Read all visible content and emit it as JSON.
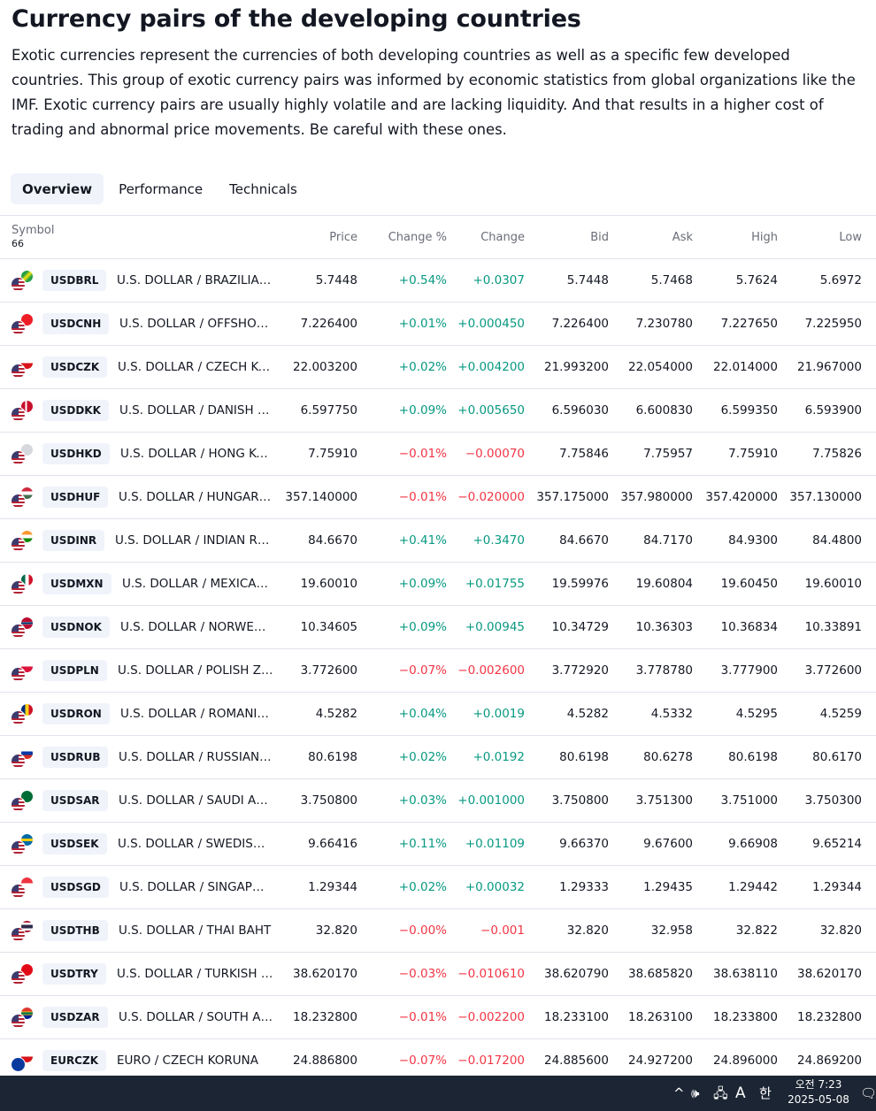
{
  "page": {
    "title": "Currency pairs of the developing countries",
    "description": "Exotic currencies represent the currencies of both developing countries as well as a specific few developed countries. This group of exotic currency pairs was informed by economic statistics from global organizations like the IMF. Exotic currency pairs are usually highly volatile and are lacking liquidity. And that results in a higher cost of trading and abnormal price movements. Be careful with these ones."
  },
  "tabs": [
    {
      "label": "Overview",
      "active": true
    },
    {
      "label": "Performance",
      "active": false
    },
    {
      "label": "Technicals",
      "active": false
    }
  ],
  "table": {
    "headers": {
      "symbol": "Symbol",
      "count": "66",
      "price": "Price",
      "change_pct": "Change %",
      "change": "Change",
      "bid": "Bid",
      "ask": "Ask",
      "high": "High",
      "low": "Low"
    },
    "rows": [
      {
        "ticker": "USDBRL",
        "desc": "U.S. DOLLAR / BRAZILIAN REAL",
        "price": "5.7448",
        "change_pct": "+0.54%",
        "change": "+0.0307",
        "bid": "5.7448",
        "ask": "5.7468",
        "high": "5.7624",
        "low": "5.6972",
        "dir": "pos",
        "flag": "linear-gradient(135deg,#229e45 30%,#f8e509 50%,#229e45 70%)"
      },
      {
        "ticker": "USDCNH",
        "desc": "U.S. DOLLAR / OFFSHORE CHINESE YUAN",
        "price": "7.226400",
        "change_pct": "+0.01%",
        "change": "+0.000450",
        "bid": "7.226400",
        "ask": "7.230780",
        "high": "7.227650",
        "low": "7.225950",
        "dir": "pos",
        "flag": "#ee1c25"
      },
      {
        "ticker": "USDCZK",
        "desc": "U.S. DOLLAR / CZECH KORUNA",
        "price": "22.003200",
        "change_pct": "+0.02%",
        "change": "+0.004200",
        "bid": "21.993200",
        "ask": "22.054000",
        "high": "22.014000",
        "low": "21.967000",
        "dir": "pos",
        "flag": "linear-gradient(#ffffff 50%,#d7141a 50%)"
      },
      {
        "ticker": "USDDKK",
        "desc": "U.S. DOLLAR / DANISH KRONE",
        "price": "6.597750",
        "change_pct": "+0.09%",
        "change": "+0.005650",
        "bid": "6.596030",
        "ask": "6.600830",
        "high": "6.599350",
        "low": "6.593900",
        "dir": "pos",
        "flag": "linear-gradient(90deg,#c8102e 35%,#fff 35%,#fff 50%,#c8102e 50%)"
      },
      {
        "ticker": "USDHKD",
        "desc": "U.S. DOLLAR / HONG KONG DOLLAR",
        "price": "7.75910",
        "change_pct": "−0.01%",
        "change": "−0.00070",
        "bid": "7.75846",
        "ask": "7.75957",
        "high": "7.75910",
        "low": "7.75826",
        "dir": "neg",
        "flag": "#d6d8dd"
      },
      {
        "ticker": "USDHUF",
        "desc": "U.S. DOLLAR / HUNGARIAN FORINT",
        "price": "357.140000",
        "change_pct": "−0.01%",
        "change": "−0.020000",
        "bid": "357.175000",
        "ask": "357.980000",
        "high": "357.420000",
        "low": "357.130000",
        "dir": "neg",
        "flag": "linear-gradient(#cd2a3e 33%,#fff 33%,#fff 66%,#436f4d 66%)"
      },
      {
        "ticker": "USDINR",
        "desc": "U.S. DOLLAR / INDIAN RUPEE",
        "price": "84.6670",
        "change_pct": "+0.41%",
        "change": "+0.3470",
        "bid": "84.6670",
        "ask": "84.7170",
        "high": "84.9300",
        "low": "84.4800",
        "dir": "pos",
        "flag": "linear-gradient(#ff9933 33%,#fff 33%,#fff 66%,#138808 66%)"
      },
      {
        "ticker": "USDMXN",
        "desc": "U.S. DOLLAR / MEXICAN PESO",
        "price": "19.60010",
        "change_pct": "+0.09%",
        "change": "+0.01755",
        "bid": "19.59976",
        "ask": "19.60804",
        "high": "19.60450",
        "low": "19.60010",
        "dir": "pos",
        "flag": "linear-gradient(90deg,#006847 33%,#fff 33%,#fff 66%,#ce1126 66%)"
      },
      {
        "ticker": "USDNOK",
        "desc": "U.S. DOLLAR / NORWEGIAN KRONE",
        "price": "10.34605",
        "change_pct": "+0.09%",
        "change": "+0.00945",
        "bid": "10.34729",
        "ask": "10.36303",
        "high": "10.36834",
        "low": "10.33891",
        "dir": "pos",
        "flag": "linear-gradient(#ba0c2f 38%,#fff 38%,#00205b 45%,#00205b 55%,#fff 62%,#ba0c2f 62%)"
      },
      {
        "ticker": "USDPLN",
        "desc": "U.S. DOLLAR / POLISH ZLOTY",
        "price": "3.772600",
        "change_pct": "−0.07%",
        "change": "−0.002600",
        "bid": "3.772920",
        "ask": "3.778780",
        "high": "3.777900",
        "low": "3.772600",
        "dir": "neg",
        "flag": "linear-gradient(#ffffff 50%,#dc143c 50%)"
      },
      {
        "ticker": "USDRON",
        "desc": "U.S. DOLLAR / ROMANIAN LEU",
        "price": "4.5282",
        "change_pct": "+0.04%",
        "change": "+0.0019",
        "bid": "4.5282",
        "ask": "4.5332",
        "high": "4.5295",
        "low": "4.5259",
        "dir": "pos",
        "flag": "linear-gradient(90deg,#002b7f 33%,#fcd116 33%,#fcd116 66%,#ce1126 66%)"
      },
      {
        "ticker": "USDRUB",
        "desc": "U.S. DOLLAR / RUSSIAN RUBLE",
        "price": "80.6198",
        "change_pct": "+0.02%",
        "change": "+0.0192",
        "bid": "80.6198",
        "ask": "80.6278",
        "high": "80.6198",
        "low": "80.6170",
        "dir": "pos",
        "flag": "linear-gradient(#fff 33%,#0039a6 33%,#0039a6 66%,#d52b1e 66%)"
      },
      {
        "ticker": "USDSAR",
        "desc": "U.S. DOLLAR / SAUDI ARABIAN RIYAL",
        "price": "3.750800",
        "change_pct": "+0.03%",
        "change": "+0.001000",
        "bid": "3.750800",
        "ask": "3.751300",
        "high": "3.751000",
        "low": "3.750300",
        "dir": "pos",
        "flag": "#006c35"
      },
      {
        "ticker": "USDSEK",
        "desc": "U.S. DOLLAR / SWEDISH KRONA",
        "price": "9.66416",
        "change_pct": "+0.11%",
        "change": "+0.01109",
        "bid": "9.66370",
        "ask": "9.67600",
        "high": "9.66908",
        "low": "9.65214",
        "dir": "pos",
        "flag": "linear-gradient(#006aa7 40%,#fecc00 40%,#fecc00 60%,#006aa7 60%)"
      },
      {
        "ticker": "USDSGD",
        "desc": "U.S. DOLLAR / SINGAPORE DOLLAR",
        "price": "1.29344",
        "change_pct": "+0.02%",
        "change": "+0.00032",
        "bid": "1.29333",
        "ask": "1.29435",
        "high": "1.29442",
        "low": "1.29344",
        "dir": "pos",
        "flag": "linear-gradient(#ef3340 50%,#ffffff 50%)"
      },
      {
        "ticker": "USDTHB",
        "desc": "U.S. DOLLAR / THAI BAHT",
        "price": "32.820",
        "change_pct": "−0.00%",
        "change": "−0.001",
        "bid": "32.820",
        "ask": "32.958",
        "high": "32.822",
        "low": "32.820",
        "dir": "neg",
        "flag": "linear-gradient(#a51931 17%,#fff 17%,#fff 33%,#2d2a4a 33%,#2d2a4a 66%,#fff 66%,#fff 83%,#a51931 83%)"
      },
      {
        "ticker": "USDTRY",
        "desc": "U.S. DOLLAR / TURKISH LIRA",
        "price": "38.620170",
        "change_pct": "−0.03%",
        "change": "−0.010610",
        "bid": "38.620790",
        "ask": "38.685820",
        "high": "38.638110",
        "low": "38.620170",
        "dir": "neg",
        "flag": "#e30a17"
      },
      {
        "ticker": "USDZAR",
        "desc": "U.S. DOLLAR / SOUTH AFRICAN RAND",
        "price": "18.232800",
        "change_pct": "−0.01%",
        "change": "−0.002200",
        "bid": "18.233100",
        "ask": "18.263100",
        "high": "18.233800",
        "low": "18.232800",
        "dir": "neg",
        "flag": "linear-gradient(#de3831 30%,#ffb612 38%,#007a4d 45%,#007a4d 58%,#ffb612 62%,#002395 70%)"
      },
      {
        "ticker": "EURCZK",
        "desc": "EURO / CZECH KORUNA",
        "price": "24.886800",
        "change_pct": "−0.07%",
        "change": "−0.017200",
        "bid": "24.885600",
        "ask": "24.927200",
        "high": "24.896000",
        "low": "24.869200",
        "dir": "neg",
        "flag": "linear-gradient(#ffffff 50%,#d7141a 50%)",
        "base": "eu"
      }
    ]
  },
  "taskbar": {
    "caret": "^",
    "volume": "🕪",
    "network": "🖧",
    "ime_mode": "A",
    "ime_lang": "한",
    "time": "오전 7:23",
    "date": "2025-05-08",
    "notification": "🗨"
  }
}
